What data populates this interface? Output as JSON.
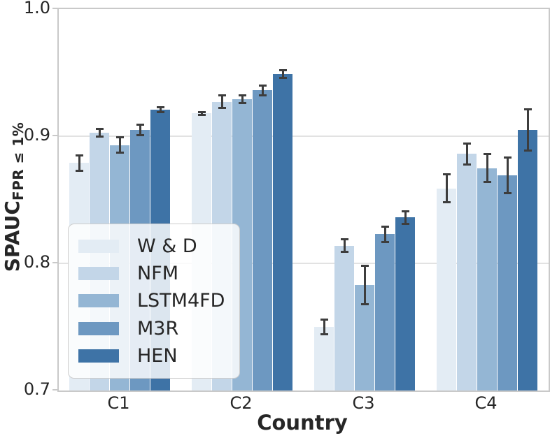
{
  "figure": {
    "background": "#ffffff",
    "text_color": "#262626",
    "grid_color": "#e2e2e2",
    "spine_color": "#c9c9c9",
    "errorbar_color": "#3d3d3d"
  },
  "chart_data": {
    "type": "bar",
    "title": "",
    "xlabel": "Country",
    "ylabel": "SPAUC",
    "ylabel_subscript": "FPR ≤ 1%",
    "categories": [
      "C1",
      "C2",
      "C3",
      "C4"
    ],
    "series": [
      {
        "name": "W & D",
        "color": "#e3ecf4",
        "values": [
          0.879,
          0.918,
          0.75,
          0.859
        ],
        "errors": [
          0.006,
          0.001,
          0.006,
          0.011
        ]
      },
      {
        "name": "NFM",
        "color": "#c3d6e8",
        "values": [
          0.903,
          0.927,
          0.814,
          0.886
        ],
        "errors": [
          0.003,
          0.005,
          0.005,
          0.008
        ]
      },
      {
        "name": "LSTM4FD",
        "color": "#94b6d4",
        "values": [
          0.893,
          0.929,
          0.783,
          0.875
        ],
        "errors": [
          0.006,
          0.003,
          0.015,
          0.011
        ]
      },
      {
        "name": "M3R",
        "color": "#6d98c1",
        "values": [
          0.905,
          0.936,
          0.823,
          0.869
        ],
        "errors": [
          0.004,
          0.004,
          0.006,
          0.014
        ]
      },
      {
        "name": "HEN",
        "color": "#3e73a6",
        "values": [
          0.921,
          0.949,
          0.836,
          0.905
        ],
        "errors": [
          0.002,
          0.003,
          0.005,
          0.016
        ]
      }
    ],
    "ylim": [
      0.7,
      1.0
    ],
    "yticks": [
      0.7,
      0.8,
      0.9,
      1.0
    ],
    "ytick_labels": [
      "0.7",
      "0.8",
      "0.9",
      "1.0"
    ],
    "grid": "horizontal",
    "legend_position": "lower-left"
  }
}
